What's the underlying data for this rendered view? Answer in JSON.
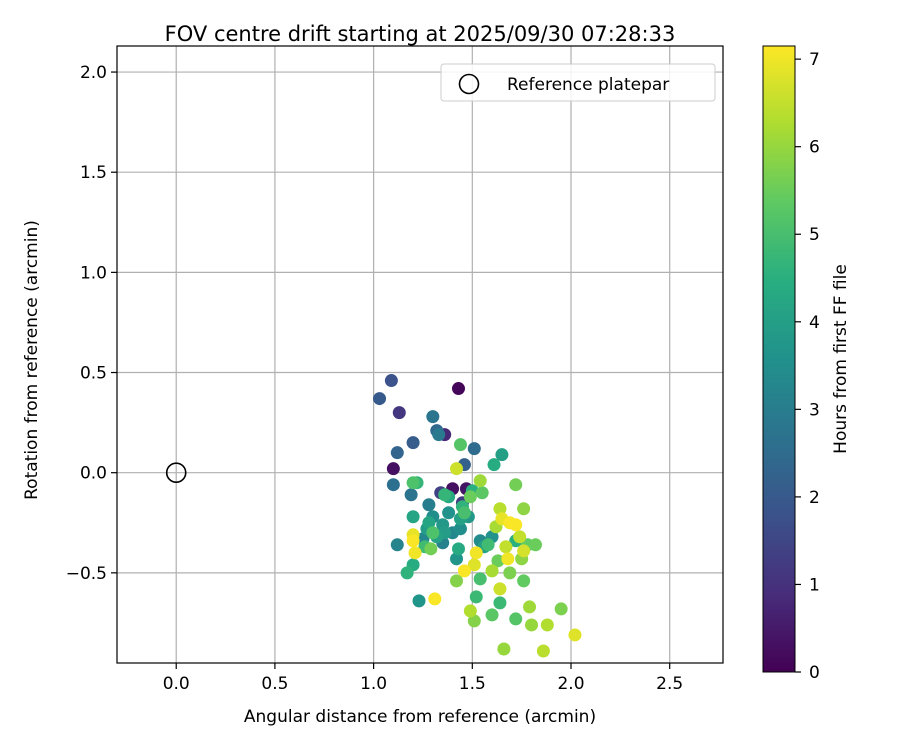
{
  "chart_data": {
    "type": "scatter",
    "title": "FOV centre drift starting at 2025/09/30 07:28:33",
    "xlabel": "Angular distance from reference (arcmin)",
    "ylabel": "Rotation from reference (arcmin)",
    "xlim": [
      -0.3,
      2.77
    ],
    "ylim": [
      -0.95,
      2.13
    ],
    "xticks": [
      0.0,
      0.5,
      1.0,
      1.5,
      2.0,
      2.5
    ],
    "xtick_labels": [
      "0.0",
      "0.5",
      "1.0",
      "1.5",
      "2.0",
      "2.5"
    ],
    "yticks": [
      -0.5,
      0.0,
      0.5,
      1.0,
      1.5,
      2.0
    ],
    "ytick_labels": [
      "−0.5",
      "0.0",
      "0.5",
      "1.0",
      "1.5",
      "2.0"
    ],
    "grid": true,
    "legend": {
      "position": "top-right",
      "entries": [
        {
          "label": "Reference platepar",
          "marker": "open-circle"
        }
      ]
    },
    "reference_point": {
      "x": 0.0,
      "y": 0.0
    },
    "colormap": "viridis",
    "colorbar": {
      "label": "Hours from first FF file",
      "range": [
        0,
        7.15
      ],
      "ticks": [
        0,
        1,
        2,
        3,
        4,
        5,
        6,
        7
      ],
      "tick_labels": [
        "0",
        "1",
        "2",
        "3",
        "4",
        "5",
        "6",
        "7"
      ]
    },
    "points": [
      {
        "x": 1.43,
        "y": 0.42,
        "h": 0.1
      },
      {
        "x": 1.1,
        "y": 0.02,
        "h": 0.3
      },
      {
        "x": 1.4,
        "y": -0.08,
        "h": 0.3
      },
      {
        "x": 1.47,
        "y": -0.08,
        "h": 0.4
      },
      {
        "x": 1.36,
        "y": 0.19,
        "h": 0.8
      },
      {
        "x": 1.13,
        "y": 0.3,
        "h": 1.1
      },
      {
        "x": 1.45,
        "y": -0.15,
        "h": 1.2
      },
      {
        "x": 1.34,
        "y": -0.1,
        "h": 1.4
      },
      {
        "x": 1.09,
        "y": 0.46,
        "h": 1.8
      },
      {
        "x": 1.03,
        "y": 0.37,
        "h": 2.0
      },
      {
        "x": 1.2,
        "y": 0.15,
        "h": 2.1
      },
      {
        "x": 1.46,
        "y": 0.04,
        "h": 2.2
      },
      {
        "x": 1.12,
        "y": 0.1,
        "h": 2.3
      },
      {
        "x": 1.32,
        "y": 0.21,
        "h": 2.4
      },
      {
        "x": 1.51,
        "y": 0.12,
        "h": 2.5
      },
      {
        "x": 1.1,
        "y": -0.06,
        "h": 2.6
      },
      {
        "x": 1.19,
        "y": -0.11,
        "h": 2.7
      },
      {
        "x": 1.3,
        "y": 0.28,
        "h": 2.8
      },
      {
        "x": 1.33,
        "y": 0.19,
        "h": 2.9
      },
      {
        "x": 1.28,
        "y": -0.16,
        "h": 3.0
      },
      {
        "x": 1.35,
        "y": -0.35,
        "h": 3.1
      },
      {
        "x": 1.12,
        "y": -0.36,
        "h": 3.2
      },
      {
        "x": 1.4,
        "y": -0.3,
        "h": 3.3
      },
      {
        "x": 1.25,
        "y": -0.33,
        "h": 3.3
      },
      {
        "x": 1.54,
        "y": -0.34,
        "h": 3.4
      },
      {
        "x": 1.3,
        "y": -0.22,
        "h": 3.5
      },
      {
        "x": 1.44,
        "y": -0.28,
        "h": 3.5
      },
      {
        "x": 1.38,
        "y": -0.2,
        "h": 3.6
      },
      {
        "x": 1.6,
        "y": -0.32,
        "h": 3.6
      },
      {
        "x": 1.23,
        "y": -0.64,
        "h": 3.7
      },
      {
        "x": 1.42,
        "y": -0.43,
        "h": 3.7
      },
      {
        "x": 1.35,
        "y": -0.26,
        "h": 3.8
      },
      {
        "x": 1.48,
        "y": -0.22,
        "h": 3.8
      },
      {
        "x": 1.27,
        "y": -0.28,
        "h": 3.9
      },
      {
        "x": 1.36,
        "y": -0.3,
        "h": 3.9
      },
      {
        "x": 1.65,
        "y": 0.09,
        "h": 4.0
      },
      {
        "x": 1.56,
        "y": -0.37,
        "h": 4.0
      },
      {
        "x": 1.32,
        "y": -0.32,
        "h": 4.1
      },
      {
        "x": 1.44,
        "y": -0.23,
        "h": 4.1
      },
      {
        "x": 1.2,
        "y": -0.22,
        "h": 4.2
      },
      {
        "x": 1.28,
        "y": -0.25,
        "h": 4.2
      },
      {
        "x": 1.38,
        "y": -0.12,
        "h": 4.3
      },
      {
        "x": 1.43,
        "y": -0.38,
        "h": 4.3
      },
      {
        "x": 1.2,
        "y": -0.46,
        "h": 4.4
      },
      {
        "x": 1.61,
        "y": 0.04,
        "h": 4.4
      },
      {
        "x": 1.5,
        "y": -0.09,
        "h": 4.5
      },
      {
        "x": 1.72,
        "y": -0.34,
        "h": 4.5
      },
      {
        "x": 1.17,
        "y": -0.5,
        "h": 4.6
      },
      {
        "x": 1.45,
        "y": -0.17,
        "h": 4.6
      },
      {
        "x": 1.36,
        "y": -0.11,
        "h": 4.7
      },
      {
        "x": 1.22,
        "y": -0.05,
        "h": 4.7
      },
      {
        "x": 1.52,
        "y": -0.62,
        "h": 4.8
      },
      {
        "x": 1.64,
        "y": -0.65,
        "h": 4.8
      },
      {
        "x": 1.58,
        "y": -0.36,
        "h": 4.9
      },
      {
        "x": 1.26,
        "y": -0.37,
        "h": 4.9
      },
      {
        "x": 1.46,
        "y": -0.2,
        "h": 5.0
      },
      {
        "x": 1.54,
        "y": -0.53,
        "h": 5.0
      },
      {
        "x": 1.3,
        "y": -0.3,
        "h": 5.1
      },
      {
        "x": 1.2,
        "y": -0.05,
        "h": 5.1
      },
      {
        "x": 1.44,
        "y": 0.14,
        "h": 5.2
      },
      {
        "x": 1.72,
        "y": -0.73,
        "h": 5.2
      },
      {
        "x": 1.6,
        "y": -0.71,
        "h": 5.3
      },
      {
        "x": 1.55,
        "y": -0.1,
        "h": 5.3
      },
      {
        "x": 1.78,
        "y": -0.36,
        "h": 5.4
      },
      {
        "x": 1.76,
        "y": -0.54,
        "h": 5.4
      },
      {
        "x": 1.49,
        "y": -0.12,
        "h": 5.5
      },
      {
        "x": 1.82,
        "y": -0.36,
        "h": 5.5
      },
      {
        "x": 1.63,
        "y": -0.44,
        "h": 5.5
      },
      {
        "x": 1.72,
        "y": -0.06,
        "h": 5.6
      },
      {
        "x": 1.29,
        "y": -0.38,
        "h": 5.6
      },
      {
        "x": 1.95,
        "y": -0.68,
        "h": 5.7
      },
      {
        "x": 1.69,
        "y": -0.5,
        "h": 5.7
      },
      {
        "x": 1.42,
        "y": -0.54,
        "h": 5.8
      },
      {
        "x": 1.51,
        "y": -0.74,
        "h": 5.8
      },
      {
        "x": 1.76,
        "y": -0.18,
        "h": 5.9
      },
      {
        "x": 1.75,
        "y": -0.43,
        "h": 5.9
      },
      {
        "x": 1.66,
        "y": -0.88,
        "h": 6.0
      },
      {
        "x": 1.8,
        "y": -0.76,
        "h": 6.0
      },
      {
        "x": 1.79,
        "y": -0.67,
        "h": 6.1
      },
      {
        "x": 1.54,
        "y": -0.04,
        "h": 6.1
      },
      {
        "x": 1.62,
        "y": -0.27,
        "h": 6.2
      },
      {
        "x": 1.6,
        "y": -0.49,
        "h": 6.2
      },
      {
        "x": 1.49,
        "y": -0.69,
        "h": 6.3
      },
      {
        "x": 1.88,
        "y": -0.76,
        "h": 6.3
      },
      {
        "x": 1.86,
        "y": -0.89,
        "h": 6.4
      },
      {
        "x": 1.64,
        "y": -0.18,
        "h": 6.4
      },
      {
        "x": 1.74,
        "y": -0.32,
        "h": 6.5
      },
      {
        "x": 1.67,
        "y": -0.37,
        "h": 6.5
      },
      {
        "x": 1.64,
        "y": -0.58,
        "h": 6.6
      },
      {
        "x": 1.42,
        "y": 0.02,
        "h": 6.6
      },
      {
        "x": 1.76,
        "y": -0.39,
        "h": 6.7
      },
      {
        "x": 2.02,
        "y": -0.81,
        "h": 6.8
      },
      {
        "x": 1.51,
        "y": -0.46,
        "h": 6.8
      },
      {
        "x": 1.65,
        "y": -0.23,
        "h": 6.9
      },
      {
        "x": 1.2,
        "y": -0.31,
        "h": 6.9
      },
      {
        "x": 1.68,
        "y": -0.43,
        "h": 7.0
      },
      {
        "x": 1.52,
        "y": -0.4,
        "h": 7.0
      },
      {
        "x": 1.21,
        "y": -0.4,
        "h": 7.0
      },
      {
        "x": 1.31,
        "y": -0.63,
        "h": 7.1
      },
      {
        "x": 1.46,
        "y": -0.49,
        "h": 7.1
      },
      {
        "x": 1.69,
        "y": -0.25,
        "h": 7.1
      },
      {
        "x": 1.72,
        "y": -0.26,
        "h": 7.1
      },
      {
        "x": 1.2,
        "y": -0.34,
        "h": 7.1
      }
    ]
  }
}
